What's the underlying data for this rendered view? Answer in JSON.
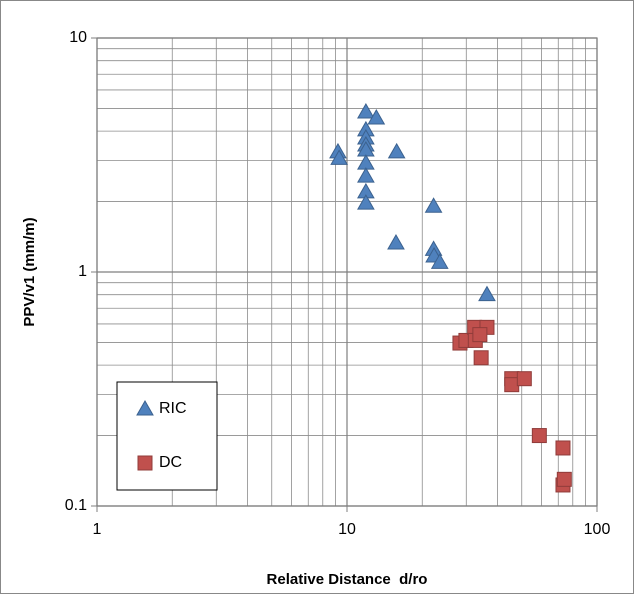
{
  "chart_data": {
    "type": "scatter",
    "x_label": "Relative Distance  d/ro",
    "y_label": "PPV/v1 (mm/m)",
    "xlog": true,
    "ylog": true,
    "grid": true,
    "xlim": [
      1,
      100
    ],
    "ylim": [
      0.1,
      10
    ],
    "xticks": [
      1,
      10,
      100
    ],
    "yticks": [
      0.1,
      1,
      10
    ],
    "legend": "lower-left",
    "series": [
      {
        "name": "RIC",
        "color": "#4f81bd",
        "marker": "triangle",
        "x": [
          9.2,
          9.3,
          11.9,
          11.9,
          11.9,
          11.9,
          11.9,
          11.9,
          11.9,
          11.9,
          11.9,
          13.1,
          15.8,
          15.7,
          22.2,
          22.2,
          22.3,
          23.5,
          36.3
        ],
        "values": [
          3.26,
          3.06,
          4.83,
          4.05,
          3.74,
          3.49,
          3.32,
          2.92,
          2.57,
          2.2,
          1.97,
          4.55,
          3.26,
          1.33,
          1.91,
          1.25,
          1.17,
          1.1,
          0.8
        ]
      },
      {
        "name": "DC",
        "color": "#c0504d",
        "marker": "square",
        "x": [
          28.3,
          29.9,
          32.4,
          32.6,
          34.4,
          36.3,
          34.0,
          45.6,
          45.6,
          51.2,
          58.8,
          73.1,
          73.1,
          74.0
        ],
        "values": [
          0.497,
          0.51,
          0.58,
          0.51,
          0.43,
          0.58,
          0.54,
          0.35,
          0.33,
          0.35,
          0.2,
          0.177,
          0.123,
          0.13
        ]
      }
    ]
  }
}
